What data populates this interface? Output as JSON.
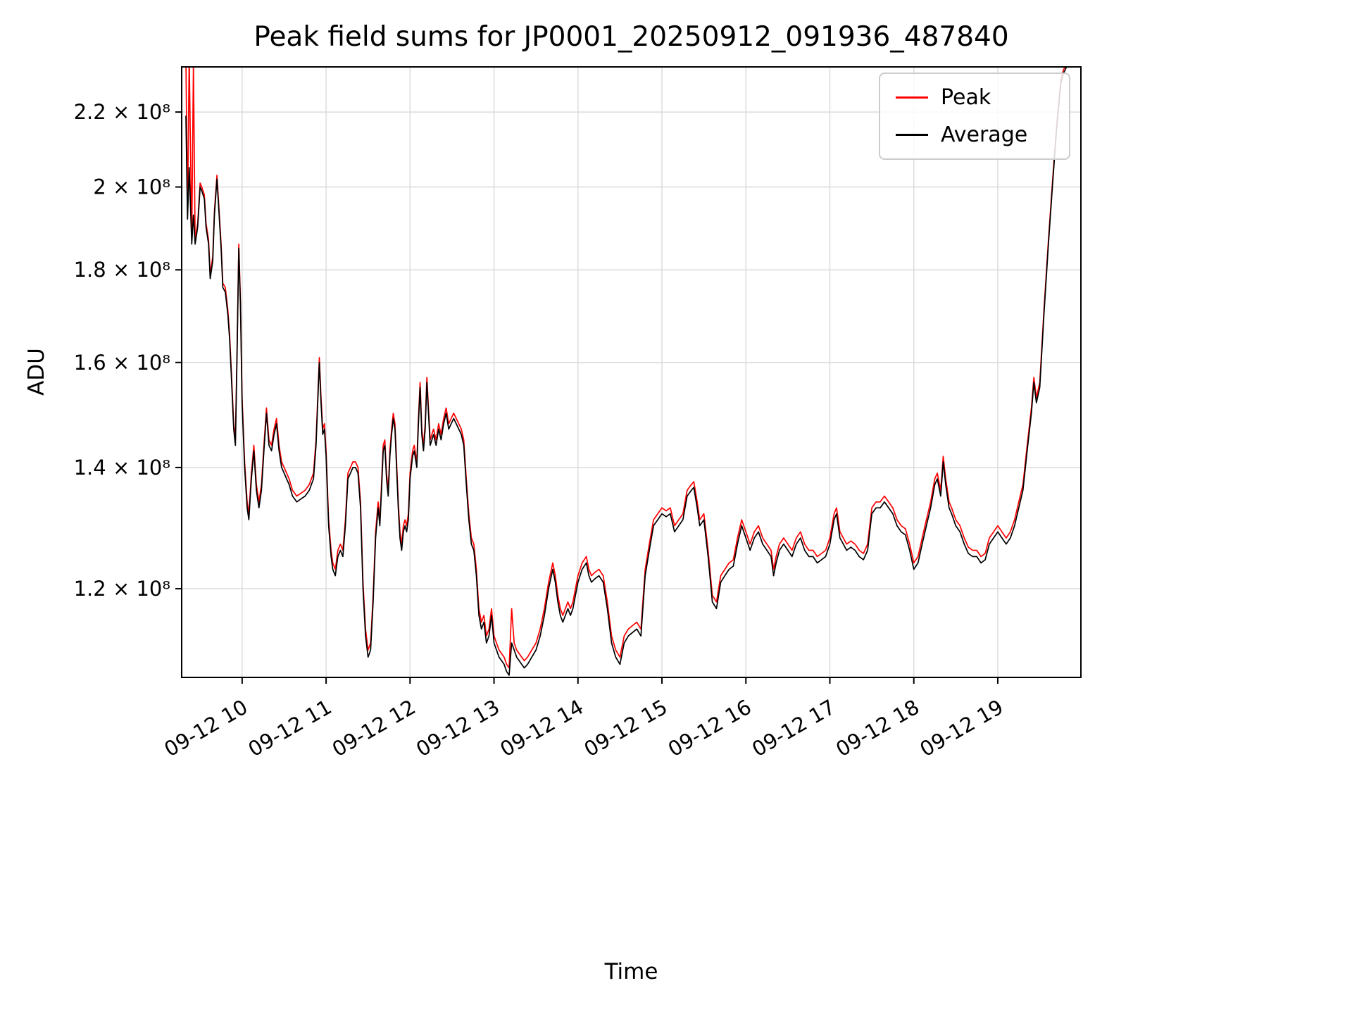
{
  "chart_data": {
    "type": "line",
    "title": "Peak field sums for JP0001_20250912_091936_487840",
    "xlabel": "Time",
    "ylabel": "ADU",
    "yscale": "log",
    "grid": true,
    "legend_position": "upper right",
    "y_value_multiplier": 100000000.0,
    "x_unit": "hour of day on 2025-09-12",
    "xlim": [
      9.28,
      19.99
    ],
    "ylim": [
      1.072,
      2.33
    ],
    "xticks": {
      "values": [
        10,
        11,
        12,
        13,
        14,
        15,
        16,
        17,
        18,
        19
      ],
      "labels": [
        "09-12 10",
        "09-12 11",
        "09-12 12",
        "09-12 13",
        "09-12 14",
        "09-12 15",
        "09-12 16",
        "09-12 17",
        "09-12 18",
        "09-12 19"
      ]
    },
    "yticks": {
      "values": [
        1.2,
        1.4,
        1.6,
        1.8,
        2.0,
        2.2
      ],
      "labels": [
        "1.2 × 10⁸",
        "1.4 × 10⁸",
        "1.6 × 10⁸",
        "1.8 × 10⁸",
        "2 × 10⁸",
        "2.2 × 10⁸"
      ]
    },
    "x": [
      9.33,
      9.35,
      9.37,
      9.4,
      9.42,
      9.44,
      9.47,
      9.5,
      9.52,
      9.55,
      9.57,
      9.6,
      9.62,
      9.65,
      9.67,
      9.7,
      9.72,
      9.75,
      9.77,
      9.8,
      9.83,
      9.85,
      9.87,
      9.9,
      9.92,
      9.94,
      9.96,
      9.98,
      10,
      10.03,
      10.06,
      10.08,
      10.11,
      10.14,
      10.17,
      10.2,
      10.23,
      10.26,
      10.29,
      10.32,
      10.35,
      10.38,
      10.41,
      10.44,
      10.47,
      10.5,
      10.53,
      10.56,
      10.6,
      10.65,
      10.7,
      10.75,
      10.8,
      10.85,
      10.88,
      10.9,
      10.92,
      10.94,
      10.96,
      10.98,
      11,
      11.03,
      11.06,
      11.08,
      11.11,
      11.14,
      11.17,
      11.2,
      11.23,
      11.26,
      11.29,
      11.32,
      11.35,
      11.38,
      11.41,
      11.44,
      11.47,
      11.5,
      11.53,
      11.56,
      11.59,
      11.62,
      11.64,
      11.66,
      11.68,
      11.7,
      11.72,
      11.74,
      11.76,
      11.78,
      11.8,
      11.82,
      11.84,
      11.86,
      11.88,
      11.9,
      11.92,
      11.94,
      11.96,
      11.98,
      12,
      12.03,
      12.05,
      12.08,
      12.1,
      12.12,
      12.14,
      12.16,
      12.18,
      12.2,
      12.22,
      12.24,
      12.26,
      12.28,
      12.31,
      12.34,
      12.37,
      12.4,
      12.43,
      12.46,
      12.49,
      12.52,
      12.55,
      12.58,
      12.61,
      12.64,
      12.67,
      12.7,
      12.73,
      12.76,
      12.79,
      12.82,
      12.85,
      12.88,
      12.91,
      12.94,
      12.97,
      13,
      13.03,
      13.06,
      13.09,
      13.12,
      13.15,
      13.18,
      13.21,
      13.24,
      13.27,
      13.3,
      13.33,
      13.36,
      13.4,
      13.45,
      13.5,
      13.55,
      13.6,
      13.65,
      13.7,
      13.73,
      13.76,
      13.79,
      13.82,
      13.85,
      13.88,
      13.91,
      13.94,
      13.97,
      14,
      14.05,
      14.1,
      14.13,
      14.16,
      14.2,
      14.25,
      14.3,
      14.35,
      14.4,
      14.45,
      14.5,
      14.55,
      14.6,
      14.65,
      14.7,
      14.75,
      14.8,
      14.85,
      14.9,
      14.95,
      15,
      15.05,
      15.1,
      15.15,
      15.2,
      15.25,
      15.3,
      15.35,
      15.38,
      15.42,
      15.45,
      15.5,
      15.55,
      15.6,
      15.65,
      15.7,
      15.75,
      15.8,
      15.85,
      15.9,
      15.95,
      16,
      16.05,
      16.1,
      16.15,
      16.2,
      16.25,
      16.3,
      16.33,
      16.36,
      16.4,
      16.45,
      16.5,
      16.55,
      16.6,
      16.65,
      16.7,
      16.75,
      16.8,
      16.85,
      16.9,
      16.95,
      17,
      17.05,
      17.08,
      17.12,
      17.16,
      17.2,
      17.25,
      17.3,
      17.35,
      17.4,
      17.45,
      17.5,
      17.55,
      17.6,
      17.65,
      17.7,
      17.75,
      17.8,
      17.85,
      17.9,
      17.95,
      18,
      18.05,
      18.1,
      18.15,
      18.2,
      18.25,
      18.28,
      18.32,
      18.35,
      18.38,
      18.42,
      18.45,
      18.5,
      18.55,
      18.6,
      18.65,
      18.7,
      18.75,
      18.8,
      18.85,
      18.9,
      18.95,
      19,
      19.05,
      19.1,
      19.15,
      19.2,
      19.25,
      19.3,
      19.35,
      19.4,
      19.43,
      19.46,
      19.5,
      19.55,
      19.6,
      19.65,
      19.7,
      19.75,
      19.78,
      19.82
    ],
    "series": [
      {
        "name": "Peak",
        "color": "#ff0000",
        "values": [
          2.36,
          1.93,
          2.36,
          1.87,
          2.34,
          1.87,
          1.91,
          2.01,
          2.0,
          1.98,
          1.91,
          1.87,
          1.79,
          1.83,
          1.94,
          2.03,
          1.96,
          1.86,
          1.77,
          1.76,
          1.71,
          1.66,
          1.59,
          1.48,
          1.45,
          1.63,
          1.86,
          1.73,
          1.53,
          1.41,
          1.34,
          1.32,
          1.39,
          1.44,
          1.37,
          1.34,
          1.37,
          1.44,
          1.51,
          1.45,
          1.44,
          1.47,
          1.49,
          1.44,
          1.41,
          1.4,
          1.39,
          1.38,
          1.36,
          1.35,
          1.355,
          1.36,
          1.37,
          1.39,
          1.45,
          1.53,
          1.61,
          1.53,
          1.47,
          1.48,
          1.43,
          1.31,
          1.26,
          1.24,
          1.23,
          1.26,
          1.27,
          1.26,
          1.31,
          1.39,
          1.4,
          1.41,
          1.41,
          1.4,
          1.34,
          1.21,
          1.14,
          1.11,
          1.12,
          1.19,
          1.29,
          1.34,
          1.31,
          1.37,
          1.44,
          1.45,
          1.39,
          1.36,
          1.43,
          1.47,
          1.5,
          1.48,
          1.41,
          1.34,
          1.29,
          1.27,
          1.3,
          1.31,
          1.3,
          1.32,
          1.39,
          1.43,
          1.44,
          1.41,
          1.49,
          1.56,
          1.47,
          1.44,
          1.48,
          1.57,
          1.51,
          1.45,
          1.46,
          1.47,
          1.45,
          1.48,
          1.46,
          1.49,
          1.51,
          1.48,
          1.49,
          1.5,
          1.49,
          1.48,
          1.47,
          1.45,
          1.38,
          1.32,
          1.28,
          1.27,
          1.23,
          1.17,
          1.15,
          1.16,
          1.13,
          1.14,
          1.17,
          1.13,
          1.12,
          1.11,
          1.105,
          1.1,
          1.09,
          1.085,
          1.17,
          1.12,
          1.11,
          1.105,
          1.1,
          1.095,
          1.1,
          1.11,
          1.12,
          1.14,
          1.17,
          1.21,
          1.24,
          1.22,
          1.19,
          1.17,
          1.16,
          1.17,
          1.18,
          1.17,
          1.18,
          1.2,
          1.22,
          1.24,
          1.25,
          1.23,
          1.22,
          1.225,
          1.23,
          1.22,
          1.18,
          1.13,
          1.11,
          1.1,
          1.13,
          1.14,
          1.145,
          1.15,
          1.14,
          1.23,
          1.27,
          1.31,
          1.32,
          1.33,
          1.325,
          1.33,
          1.3,
          1.31,
          1.32,
          1.36,
          1.37,
          1.375,
          1.34,
          1.31,
          1.32,
          1.26,
          1.19,
          1.18,
          1.22,
          1.23,
          1.24,
          1.245,
          1.28,
          1.31,
          1.29,
          1.27,
          1.29,
          1.3,
          1.28,
          1.27,
          1.26,
          1.23,
          1.25,
          1.27,
          1.28,
          1.27,
          1.26,
          1.28,
          1.29,
          1.27,
          1.26,
          1.26,
          1.25,
          1.255,
          1.26,
          1.28,
          1.32,
          1.33,
          1.29,
          1.28,
          1.27,
          1.275,
          1.27,
          1.26,
          1.255,
          1.27,
          1.33,
          1.34,
          1.34,
          1.35,
          1.34,
          1.33,
          1.31,
          1.3,
          1.295,
          1.27,
          1.24,
          1.25,
          1.28,
          1.31,
          1.34,
          1.38,
          1.39,
          1.36,
          1.42,
          1.38,
          1.34,
          1.33,
          1.31,
          1.3,
          1.28,
          1.265,
          1.26,
          1.26,
          1.25,
          1.255,
          1.28,
          1.29,
          1.3,
          1.29,
          1.28,
          1.29,
          1.31,
          1.34,
          1.37,
          1.44,
          1.51,
          1.57,
          1.53,
          1.56,
          1.71,
          1.86,
          2.01,
          2.16,
          2.29,
          2.32,
          2.34
        ]
      },
      {
        "name": "Average",
        "color": "#000000",
        "values": [
          2.19,
          1.92,
          2.05,
          1.86,
          1.93,
          1.86,
          1.9,
          2.0,
          1.99,
          1.97,
          1.9,
          1.86,
          1.78,
          1.82,
          1.93,
          2.02,
          1.95,
          1.85,
          1.76,
          1.75,
          1.7,
          1.65,
          1.58,
          1.47,
          1.44,
          1.62,
          1.85,
          1.72,
          1.52,
          1.4,
          1.33,
          1.31,
          1.38,
          1.43,
          1.36,
          1.33,
          1.36,
          1.43,
          1.5,
          1.44,
          1.43,
          1.46,
          1.48,
          1.43,
          1.4,
          1.39,
          1.38,
          1.37,
          1.35,
          1.34,
          1.345,
          1.35,
          1.36,
          1.38,
          1.44,
          1.52,
          1.6,
          1.52,
          1.46,
          1.47,
          1.42,
          1.3,
          1.25,
          1.23,
          1.22,
          1.25,
          1.26,
          1.25,
          1.3,
          1.38,
          1.39,
          1.4,
          1.4,
          1.39,
          1.33,
          1.2,
          1.13,
          1.1,
          1.11,
          1.18,
          1.28,
          1.33,
          1.3,
          1.36,
          1.43,
          1.44,
          1.38,
          1.35,
          1.42,
          1.46,
          1.49,
          1.47,
          1.4,
          1.33,
          1.28,
          1.26,
          1.29,
          1.3,
          1.29,
          1.31,
          1.38,
          1.42,
          1.43,
          1.4,
          1.48,
          1.55,
          1.46,
          1.43,
          1.47,
          1.56,
          1.5,
          1.44,
          1.45,
          1.46,
          1.44,
          1.47,
          1.45,
          1.48,
          1.5,
          1.47,
          1.48,
          1.49,
          1.48,
          1.47,
          1.46,
          1.44,
          1.37,
          1.31,
          1.27,
          1.26,
          1.22,
          1.16,
          1.14,
          1.15,
          1.12,
          1.13,
          1.16,
          1.12,
          1.11,
          1.1,
          1.095,
          1.09,
          1.08,
          1.075,
          1.12,
          1.11,
          1.1,
          1.095,
          1.09,
          1.085,
          1.09,
          1.1,
          1.11,
          1.13,
          1.16,
          1.2,
          1.23,
          1.21,
          1.18,
          1.16,
          1.15,
          1.16,
          1.17,
          1.16,
          1.17,
          1.19,
          1.21,
          1.23,
          1.24,
          1.22,
          1.21,
          1.215,
          1.22,
          1.21,
          1.17,
          1.12,
          1.1,
          1.09,
          1.12,
          1.13,
          1.135,
          1.14,
          1.13,
          1.22,
          1.26,
          1.3,
          1.31,
          1.32,
          1.315,
          1.32,
          1.29,
          1.3,
          1.31,
          1.35,
          1.36,
          1.365,
          1.33,
          1.3,
          1.31,
          1.25,
          1.18,
          1.17,
          1.21,
          1.22,
          1.23,
          1.235,
          1.27,
          1.3,
          1.28,
          1.26,
          1.28,
          1.29,
          1.27,
          1.26,
          1.25,
          1.22,
          1.24,
          1.26,
          1.27,
          1.26,
          1.25,
          1.27,
          1.28,
          1.26,
          1.25,
          1.25,
          1.24,
          1.245,
          1.25,
          1.27,
          1.31,
          1.32,
          1.28,
          1.27,
          1.26,
          1.265,
          1.26,
          1.25,
          1.245,
          1.26,
          1.32,
          1.33,
          1.33,
          1.34,
          1.33,
          1.32,
          1.3,
          1.29,
          1.285,
          1.26,
          1.23,
          1.24,
          1.27,
          1.3,
          1.33,
          1.37,
          1.38,
          1.35,
          1.41,
          1.37,
          1.33,
          1.32,
          1.3,
          1.29,
          1.27,
          1.255,
          1.25,
          1.25,
          1.24,
          1.245,
          1.27,
          1.28,
          1.29,
          1.28,
          1.27,
          1.28,
          1.3,
          1.33,
          1.36,
          1.43,
          1.5,
          1.56,
          1.52,
          1.55,
          1.7,
          1.85,
          2.0,
          2.15,
          2.28,
          2.31,
          2.33
        ]
      }
    ]
  }
}
